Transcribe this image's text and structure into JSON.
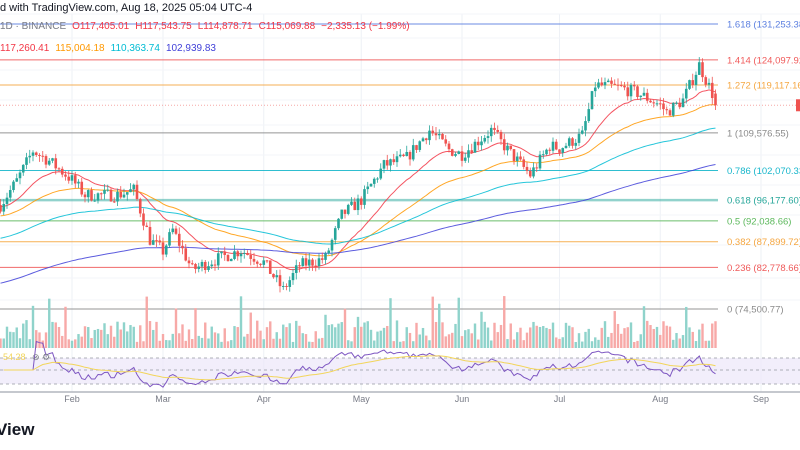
{
  "header": {
    "text": "d with TradingView.com, Aug 18, 2025 05:04 UTC-4"
  },
  "legend": {
    "symbol": "1D · BINANCE",
    "open": "O117,405.01",
    "high": "H117,543.75",
    "low": "L114,878.71",
    "close": "C115,069.88",
    "change": "−2,335.13 (−1.99%)"
  },
  "ma_legend": [
    {
      "value": "117,260.41",
      "color": "#f23645"
    },
    {
      "value": "115,004.18",
      "color": "#ff9800"
    },
    {
      "value": "110,363.74",
      "color": "#00bcd4"
    },
    {
      "value": "102,939.83",
      "color": "#3f3fd8"
    }
  ],
  "rsi": {
    "value": "54.28",
    "icons": [
      "eye-off-icon",
      "settings-icon"
    ]
  },
  "footer": {
    "text": "View"
  },
  "chart_data": {
    "type": "candlestick",
    "title": "BTC/USDT 1D · BINANCE",
    "x_axis": {
      "ticks": [
        "Feb",
        "Mar",
        "Apr",
        "May",
        "Jun",
        "Jul",
        "Aug",
        "Sep"
      ],
      "range": [
        "2025-01-10",
        "2025-09-01"
      ]
    },
    "y_range": [
      74500,
      131253
    ],
    "close_keypoints": [
      [
        "2025-01-10",
        95200
      ],
      [
        "2025-01-15",
        100000
      ],
      [
        "2025-01-20",
        106000
      ],
      [
        "2025-01-25",
        104000
      ],
      [
        "2025-02-01",
        100200
      ],
      [
        "2025-02-05",
        97200
      ],
      [
        "2025-02-15",
        97200
      ],
      [
        "2025-02-20",
        98200
      ],
      [
        "2025-02-25",
        88300
      ],
      [
        "2025-03-01",
        86000
      ],
      [
        "2025-03-04",
        90200
      ],
      [
        "2025-03-10",
        82300
      ],
      [
        "2025-03-15",
        83800
      ],
      [
        "2025-03-25",
        86200
      ],
      [
        "2025-04-01",
        83800
      ],
      [
        "2025-04-07",
        78300
      ],
      [
        "2025-04-12",
        83200
      ],
      [
        "2025-04-20",
        84600
      ],
      [
        "2025-04-25",
        93200
      ],
      [
        "2025-05-01",
        96200
      ],
      [
        "2025-05-08",
        103100
      ],
      [
        "2025-05-15",
        104600
      ],
      [
        "2025-05-22",
        110100
      ],
      [
        "2025-05-28",
        106200
      ],
      [
        "2025-06-01",
        105300
      ],
      [
        "2025-06-10",
        110100
      ],
      [
        "2025-06-15",
        106200
      ],
      [
        "2025-06-22",
        101200
      ],
      [
        "2025-06-28",
        107000
      ],
      [
        "2025-07-01",
        106500
      ],
      [
        "2025-07-08",
        109100
      ],
      [
        "2025-07-12",
        119100
      ],
      [
        "2025-07-20",
        118500
      ],
      [
        "2025-07-25",
        117500
      ],
      [
        "2025-08-01",
        115100
      ],
      [
        "2025-08-03",
        113700
      ],
      [
        "2025-08-08",
        116100
      ],
      [
        "2025-08-13",
        123100
      ],
      [
        "2025-08-17",
        117400
      ],
      [
        "2025-08-18",
        115070
      ]
    ],
    "moving_averages": [
      {
        "period": 20,
        "color": "#f23645",
        "last": 117260.41
      },
      {
        "period": 50,
        "color": "#ff9800",
        "last": 115004.18
      },
      {
        "period": 100,
        "color": "#00bcd4",
        "last": 110363.74
      },
      {
        "period": 200,
        "color": "#3f3fd8",
        "last": 102939.83
      }
    ],
    "fib_levels": [
      {
        "ratio": "1.618",
        "price": 131253.38,
        "label": "1.618 (131,253.38)",
        "color": "#5b7fe0"
      },
      {
        "ratio": "1.414",
        "price": 124097.92,
        "label": "1.414 (124,097.92)",
        "color": "#f05a5a"
      },
      {
        "ratio": "1.272",
        "price": 119117.16,
        "label": "1.272 (119,117.16)",
        "color": "#f5a742"
      },
      {
        "ratio": "1",
        "price": 109576.55,
        "label": "1 (109,576.55)",
        "color": "#8a8a8a"
      },
      {
        "ratio": "0.786",
        "price": 102070.33,
        "label": "0.786 (102,070.33)",
        "color": "#19b7cc"
      },
      {
        "ratio": "0.618",
        "price": 96177.6,
        "label": "0.618 (96,177.60)",
        "color": "#26a69a"
      },
      {
        "ratio": "0.5",
        "price": 92038.66,
        "label": "0.5 (92,038.66)",
        "color": "#5cb85c"
      },
      {
        "ratio": "0.382",
        "price": 87899.72,
        "label": "0.382 (87,899.72)",
        "color": "#f5a742"
      },
      {
        "ratio": "0.236",
        "price": 82778.66,
        "label": "0.236 (82,778.66)",
        "color": "#ef5a5a"
      },
      {
        "ratio": "0",
        "price": 74500.77,
        "label": "0 (74,500.77)",
        "color": "#8a8a8a"
      }
    ],
    "rsi_last": 54.28,
    "up_color": "#26a69a",
    "down_color": "#ef5350"
  }
}
